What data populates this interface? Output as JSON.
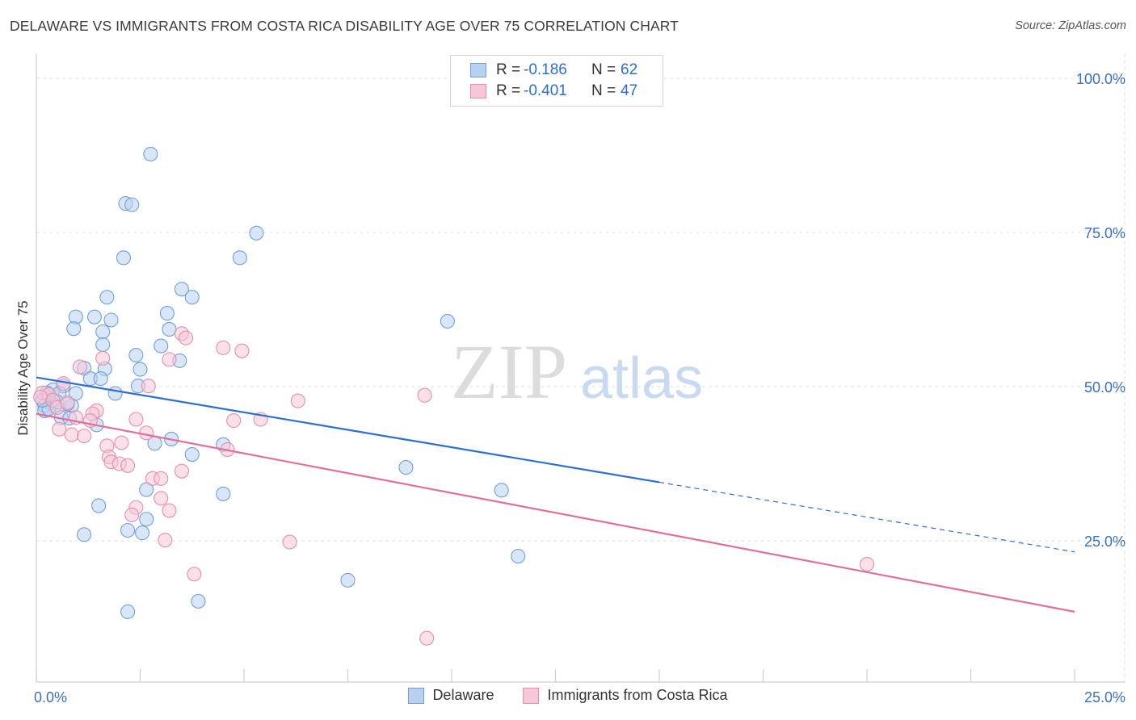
{
  "title": "DELAWARE VS IMMIGRANTS FROM COSTA RICA DISABILITY AGE OVER 75 CORRELATION CHART",
  "source": "Source: ZipAtlas.com",
  "watermark": {
    "zip": "ZIP",
    "atlas": "atlas"
  },
  "legend": {
    "rows": [
      {
        "r_label": "R =",
        "r_value": "-0.186",
        "n_label": "N =",
        "n_value": "62",
        "color": "#6fa0dc",
        "fill": "#b9d1f1"
      },
      {
        "r_label": "R =",
        "r_value": "-0.401",
        "n_label": "N =",
        "n_value": "47",
        "color": "#e58fae",
        "fill": "#f6c7d7"
      }
    ]
  },
  "bottom_legend": {
    "series1": "Delaware",
    "series2": "Immigrants from Costa Rica"
  },
  "chart_data": {
    "type": "scatter",
    "title": "DELAWARE VS IMMIGRANTS FROM COSTA RICA DISABILITY AGE OVER 75 CORRELATION CHART",
    "xlabel": "",
    "ylabel": "Disability Age Over 75",
    "xlim": [
      0,
      25
    ],
    "ylim": [
      0,
      100
    ],
    "x_tick_labels": [
      "0.0%",
      "25.0%"
    ],
    "y_tick_labels": [
      "100.0%",
      "75.0%",
      "50.0%",
      "25.0%"
    ],
    "y_ticks": [
      100,
      75,
      50,
      25
    ],
    "grid": true,
    "series": [
      {
        "name": "Delaware",
        "color": "#6fa0dc",
        "fill": "#b9d1f1",
        "line_color": "#2d6fcf",
        "trend": {
          "x": [
            0,
            15
          ],
          "y": [
            51.5,
            34.5
          ],
          "dashed_to": [
            25,
            23.2
          ]
        },
        "points": [
          [
            2.75,
            87.7
          ],
          [
            2.15,
            79.7
          ],
          [
            2.3,
            79.5
          ],
          [
            5.3,
            74.9
          ],
          [
            2.1,
            70.9
          ],
          [
            4.9,
            70.9
          ],
          [
            3.5,
            65.8
          ],
          [
            1.7,
            64.5
          ],
          [
            3.75,
            64.5
          ],
          [
            3.15,
            61.9
          ],
          [
            0.95,
            61.3
          ],
          [
            1.4,
            61.3
          ],
          [
            1.8,
            60.8
          ],
          [
            9.9,
            60.6
          ],
          [
            0.9,
            59.4
          ],
          [
            3.2,
            59.3
          ],
          [
            1.6,
            58.9
          ],
          [
            1.6,
            56.8
          ],
          [
            3.0,
            56.6
          ],
          [
            2.4,
            55.1
          ],
          [
            3.45,
            54.2
          ],
          [
            1.15,
            53.0
          ],
          [
            1.65,
            52.9
          ],
          [
            2.5,
            52.8
          ],
          [
            1.3,
            51.3
          ],
          [
            1.55,
            51.3
          ],
          [
            2.45,
            50.1
          ],
          [
            0.65,
            50.1
          ],
          [
            0.4,
            49.5
          ],
          [
            0.25,
            49.0
          ],
          [
            0.95,
            48.9
          ],
          [
            1.9,
            48.9
          ],
          [
            0.55,
            48.9
          ],
          [
            0.35,
            47.3
          ],
          [
            0.2,
            46.9
          ],
          [
            0.45,
            46.9
          ],
          [
            0.85,
            46.9
          ],
          [
            0.2,
            46.1
          ],
          [
            0.3,
            46.4
          ],
          [
            0.6,
            45.0
          ],
          [
            0.8,
            44.9
          ],
          [
            1.45,
            43.8
          ],
          [
            3.25,
            41.5
          ],
          [
            2.85,
            40.8
          ],
          [
            4.5,
            40.6
          ],
          [
            3.75,
            39.0
          ],
          [
            8.9,
            36.9
          ],
          [
            11.2,
            33.2
          ],
          [
            4.5,
            32.6
          ],
          [
            2.65,
            33.3
          ],
          [
            1.5,
            30.7
          ],
          [
            2.65,
            28.5
          ],
          [
            2.2,
            26.7
          ],
          [
            2.55,
            26.3
          ],
          [
            1.15,
            26.0
          ],
          [
            11.6,
            22.5
          ],
          [
            7.5,
            18.6
          ],
          [
            3.9,
            15.2
          ],
          [
            2.2,
            13.5
          ],
          [
            0.5,
            47.5
          ],
          [
            0.75,
            47.2
          ],
          [
            0.15,
            47.8
          ]
        ]
      },
      {
        "name": "Immigrants from Costa Rica",
        "color": "#e58fae",
        "fill": "#f6c7d7",
        "line_color": "#e0709a",
        "trend": {
          "x": [
            0,
            25
          ],
          "y": [
            45.6,
            13.5
          ]
        },
        "points": [
          [
            3.5,
            58.6
          ],
          [
            3.6,
            57.9
          ],
          [
            4.5,
            56.3
          ],
          [
            4.95,
            55.8
          ],
          [
            1.6,
            54.6
          ],
          [
            3.2,
            54.4
          ],
          [
            1.05,
            53.2
          ],
          [
            0.65,
            50.5
          ],
          [
            2.7,
            50.1
          ],
          [
            0.15,
            49.0
          ],
          [
            0.3,
            48.7
          ],
          [
            9.35,
            48.6
          ],
          [
            6.3,
            47.7
          ],
          [
            0.1,
            48.3
          ],
          [
            0.4,
            47.8
          ],
          [
            0.5,
            46.6
          ],
          [
            0.75,
            47.4
          ],
          [
            1.45,
            46.1
          ],
          [
            1.35,
            45.6
          ],
          [
            0.95,
            45.0
          ],
          [
            2.4,
            44.7
          ],
          [
            5.4,
            44.7
          ],
          [
            4.75,
            44.5
          ],
          [
            1.3,
            44.5
          ],
          [
            0.55,
            43.1
          ],
          [
            0.85,
            42.2
          ],
          [
            1.15,
            42.0
          ],
          [
            2.65,
            42.5
          ],
          [
            2.05,
            40.9
          ],
          [
            1.7,
            40.4
          ],
          [
            4.6,
            39.8
          ],
          [
            1.75,
            38.6
          ],
          [
            1.8,
            37.8
          ],
          [
            2.0,
            37.5
          ],
          [
            2.2,
            37.2
          ],
          [
            3.5,
            36.3
          ],
          [
            2.8,
            35.1
          ],
          [
            3.0,
            35.1
          ],
          [
            3.0,
            31.9
          ],
          [
            2.4,
            30.4
          ],
          [
            3.2,
            29.9
          ],
          [
            2.3,
            29.2
          ],
          [
            3.1,
            25.1
          ],
          [
            6.1,
            24.8
          ],
          [
            3.8,
            19.6
          ],
          [
            20.0,
            21.2
          ],
          [
            9.4,
            9.2
          ]
        ]
      }
    ]
  }
}
